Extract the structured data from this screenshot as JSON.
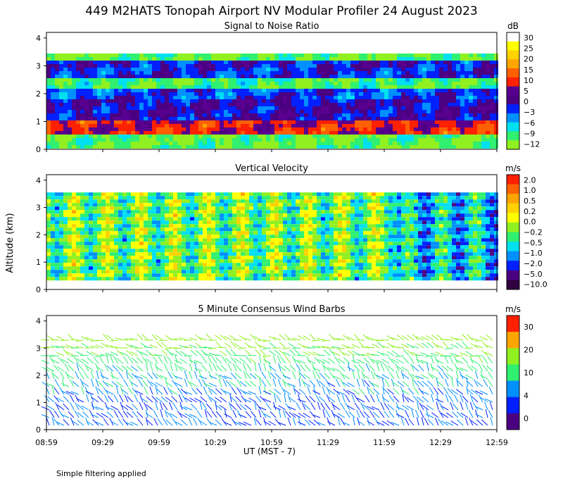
{
  "figure": {
    "title": "449 M2HATS Tonopah Airport NV Modular Profiler 24 August 2023",
    "ylabel": "Altitude (km)",
    "xlabel": "UT  (MST - 7)",
    "footnote": "Simple filtering applied",
    "x_ticks": [
      "08:59",
      "09:29",
      "09:59",
      "10:29",
      "10:59",
      "11:29",
      "11:59",
      "12:29",
      "12:59"
    ],
    "y_ticks": [
      "0",
      "1",
      "2",
      "3",
      "4"
    ]
  },
  "chart_data": [
    {
      "type": "heatmap",
      "title": "Signal to Noise Ratio",
      "xlim": [
        "08:59",
        "12:59"
      ],
      "ylim": [
        0,
        4.2
      ],
      "colorbar": {
        "unit": "dB",
        "labels": [
          "30",
          "25",
          "20",
          "15",
          "10",
          "5",
          "0",
          "−3",
          "−6",
          "−9",
          "−12"
        ],
        "colors": [
          "#ffffff",
          "#ffff00",
          "#ffd200",
          "#ffa500",
          "#ff6000",
          "#ff2000",
          "#5a0090",
          "#4b0082",
          "#0020ff",
          "#0090ff",
          "#00e0f0",
          "#30f070",
          "#90f020"
        ]
      },
      "layers": [
        {
          "altitude_km": 3.35,
          "snr_db": -10
        },
        {
          "altitude_km": 3.1,
          "snr_db": 3
        },
        {
          "altitude_km": 2.85,
          "snr_db": 2
        },
        {
          "altitude_km": 2.5,
          "snr_db": -9
        },
        {
          "altitude_km": 2.1,
          "snr_db": 1
        },
        {
          "altitude_km": 1.5,
          "snr_db": 4
        },
        {
          "altitude_km": 0.75,
          "snr_db": 12
        },
        {
          "altitude_km": 0.4,
          "snr_db": -10
        }
      ]
    },
    {
      "type": "heatmap",
      "title": "Vertical Velocity",
      "xlim": [
        "08:59",
        "12:59"
      ],
      "ylim": [
        0,
        4.2
      ],
      "colorbar": {
        "unit": "m/s",
        "labels": [
          "2.0",
          "1.0",
          "0.5",
          "0.2",
          "0.0",
          "−0.2",
          "−0.5",
          "−1.0",
          "−2.0",
          "−5.0",
          "−10.0"
        ],
        "colors": [
          "#ff2000",
          "#ff6000",
          "#ffa500",
          "#ffd200",
          "#ffff00",
          "#90f020",
          "#30f070",
          "#00e0f0",
          "#0090ff",
          "#0020ff",
          "#4b0082",
          "#300040"
        ]
      },
      "range_km": [
        0.35,
        3.55
      ]
    },
    {
      "type": "scatter",
      "title": "5 Minute Consensus Wind Barbs",
      "xlim": [
        "08:59",
        "12:59"
      ],
      "ylim": [
        0,
        4.2
      ],
      "colorbar": {
        "unit": "m/s",
        "labels": [
          "30",
          "20",
          "10",
          "4",
          "0"
        ],
        "colors": [
          "#ff2000",
          "#ffa500",
          "#90f020",
          "#30f070",
          "#0090ff",
          "#0020ff",
          "#4b0082"
        ]
      },
      "speed_profile_ms": [
        {
          "altitude_km": 0.1,
          "speed": 3
        },
        {
          "altitude_km": 1.0,
          "speed": 3
        },
        {
          "altitude_km": 1.8,
          "speed": 5
        },
        {
          "altitude_km": 2.6,
          "speed": 7
        },
        {
          "altitude_km": 3.4,
          "speed": 10
        }
      ]
    }
  ]
}
